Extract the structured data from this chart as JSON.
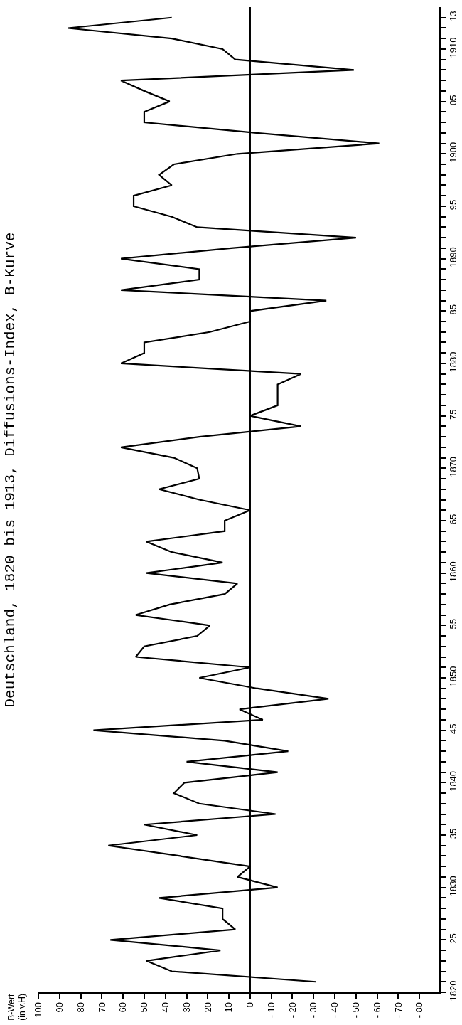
{
  "chart_data": {
    "type": "line",
    "title": "Deutschland, 1820 bis 1913, Diffusions-Index, B-Kurve",
    "ylabel": "B-Wert\n(in v.H)",
    "orientation": "horizontal",
    "x": [
      1821,
      1822,
      1823,
      1824,
      1825,
      1826,
      1827,
      1828,
      1829,
      1830,
      1831,
      1832,
      1833,
      1834,
      1835,
      1836,
      1837,
      1838,
      1839,
      1840,
      1841,
      1842,
      1843,
      1844,
      1845,
      1846,
      1847,
      1848,
      1849,
      1850,
      1851,
      1852,
      1853,
      1854,
      1855,
      1856,
      1857,
      1858,
      1859,
      1860,
      1861,
      1862,
      1863,
      1864,
      1865,
      1866,
      1867,
      1868,
      1869,
      1870,
      1871,
      1872,
      1873,
      1874,
      1875,
      1876,
      1877,
      1878,
      1879,
      1880,
      1881,
      1882,
      1883,
      1884,
      1885,
      1886,
      1887,
      1888,
      1889,
      1890,
      1891,
      1892,
      1893,
      1894,
      1895,
      1896,
      1897,
      1898,
      1899,
      1900,
      1901,
      1902,
      1903,
      1904,
      1905,
      1906,
      1907,
      1908,
      1909,
      1910,
      1911,
      1912,
      1913
    ],
    "series": [
      {
        "color": "#000000",
        "values": [
          -31,
          37,
          49,
          14,
          66,
          7,
          13,
          13,
          43,
          -13,
          6,
          0,
          33,
          67,
          25,
          50,
          -12,
          24,
          36,
          31,
          -13,
          30,
          -18,
          12,
          74,
          -6,
          5,
          -37,
          -3,
          24,
          0,
          54,
          50,
          25,
          19,
          54,
          38,
          12,
          6,
          49,
          13,
          37,
          49,
          12,
          12,
          0,
          24,
          43,
          24,
          25,
          36,
          61,
          24,
          -24,
          0,
          -13,
          -13,
          -13,
          -24,
          61,
          50,
          50,
          19,
          0,
          0,
          -36,
          61,
          24,
          24,
          61,
          9,
          -50,
          25,
          37,
          55,
          55,
          37,
          43,
          36,
          6,
          -61,
          -3,
          50,
          50,
          38,
          50,
          61,
          -49,
          7,
          13,
          37,
          86,
          37
        ]
      }
    ],
    "ylim": [
      1820,
      1914
    ],
    "yticks": [
      {
        "value": 1820,
        "label": "1820"
      },
      {
        "value": 1821,
        "label": null
      },
      {
        "value": 1822,
        "label": null
      },
      {
        "value": 1823,
        "label": null
      },
      {
        "value": 1824,
        "label": null
      },
      {
        "value": 1825,
        "label": "25"
      },
      {
        "value": 1826,
        "label": null
      },
      {
        "value": 1827,
        "label": null
      },
      {
        "value": 1828,
        "label": null
      },
      {
        "value": 1829,
        "label": null
      },
      {
        "value": 1830,
        "label": "1830"
      },
      {
        "value": 1831,
        "label": null
      },
      {
        "value": 1832,
        "label": null
      },
      {
        "value": 1833,
        "label": null
      },
      {
        "value": 1834,
        "label": null
      },
      {
        "value": 1835,
        "label": "35"
      },
      {
        "value": 1836,
        "label": null
      },
      {
        "value": 1837,
        "label": null
      },
      {
        "value": 1838,
        "label": null
      },
      {
        "value": 1839,
        "label": null
      },
      {
        "value": 1840,
        "label": "1840"
      },
      {
        "value": 1841,
        "label": null
      },
      {
        "value": 1842,
        "label": null
      },
      {
        "value": 1843,
        "label": null
      },
      {
        "value": 1844,
        "label": null
      },
      {
        "value": 1845,
        "label": "45"
      },
      {
        "value": 1846,
        "label": null
      },
      {
        "value": 1847,
        "label": null
      },
      {
        "value": 1848,
        "label": null
      },
      {
        "value": 1849,
        "label": null
      },
      {
        "value": 1850,
        "label": "1850"
      },
      {
        "value": 1851,
        "label": null
      },
      {
        "value": 1852,
        "label": null
      },
      {
        "value": 1853,
        "label": null
      },
      {
        "value": 1854,
        "label": null
      },
      {
        "value": 1855,
        "label": "55"
      },
      {
        "value": 1856,
        "label": null
      },
      {
        "value": 1857,
        "label": null
      },
      {
        "value": 1858,
        "label": null
      },
      {
        "value": 1859,
        "label": null
      },
      {
        "value": 1860,
        "label": "1860"
      },
      {
        "value": 1861,
        "label": null
      },
      {
        "value": 1862,
        "label": null
      },
      {
        "value": 1863,
        "label": null
      },
      {
        "value": 1864,
        "label": null
      },
      {
        "value": 1865,
        "label": "65"
      },
      {
        "value": 1866,
        "label": null
      },
      {
        "value": 1867,
        "label": null
      },
      {
        "value": 1868,
        "label": null
      },
      {
        "value": 1869,
        "label": null
      },
      {
        "value": 1870,
        "label": "1870"
      },
      {
        "value": 1871,
        "label": null
      },
      {
        "value": 1872,
        "label": null
      },
      {
        "value": 1873,
        "label": null
      },
      {
        "value": 1874,
        "label": null
      },
      {
        "value": 1875,
        "label": "75"
      },
      {
        "value": 1876,
        "label": null
      },
      {
        "value": 1877,
        "label": null
      },
      {
        "value": 1878,
        "label": null
      },
      {
        "value": 1879,
        "label": null
      },
      {
        "value": 1880,
        "label": "1880"
      },
      {
        "value": 1881,
        "label": null
      },
      {
        "value": 1882,
        "label": null
      },
      {
        "value": 1883,
        "label": null
      },
      {
        "value": 1884,
        "label": null
      },
      {
        "value": 1885,
        "label": "85"
      },
      {
        "value": 1886,
        "label": null
      },
      {
        "value": 1887,
        "label": null
      },
      {
        "value": 1888,
        "label": null
      },
      {
        "value": 1889,
        "label": null
      },
      {
        "value": 1890,
        "label": "1890"
      },
      {
        "value": 1891,
        "label": null
      },
      {
        "value": 1892,
        "label": null
      },
      {
        "value": 1893,
        "label": null
      },
      {
        "value": 1894,
        "label": null
      },
      {
        "value": 1895,
        "label": "95"
      },
      {
        "value": 1896,
        "label": null
      },
      {
        "value": 1897,
        "label": null
      },
      {
        "value": 1898,
        "label": null
      },
      {
        "value": 1899,
        "label": null
      },
      {
        "value": 1900,
        "label": "1900"
      },
      {
        "value": 1901,
        "label": null
      },
      {
        "value": 1902,
        "label": null
      },
      {
        "value": 1903,
        "label": null
      },
      {
        "value": 1904,
        "label": null
      },
      {
        "value": 1905,
        "label": "05"
      },
      {
        "value": 1906,
        "label": null
      },
      {
        "value": 1907,
        "label": null
      },
      {
        "value": 1908,
        "label": null
      },
      {
        "value": 1909,
        "label": null
      },
      {
        "value": 1910,
        "label": "1910"
      },
      {
        "value": 1911,
        "label": null
      },
      {
        "value": 1912,
        "label": null
      },
      {
        "value": 1913,
        "label": "13"
      }
    ],
    "xlim": [
      100,
      -89
    ],
    "xticks": [
      100,
      90,
      80,
      70,
      60,
      50,
      40,
      30,
      20,
      10,
      0,
      {
        "value": -10,
        "label": "- 10"
      },
      {
        "value": -20,
        "label": "- 20"
      },
      {
        "value": -30,
        "label": "- 30"
      },
      {
        "value": -40,
        "label": "- 40"
      },
      {
        "value": -50,
        "label": "- 50"
      },
      {
        "value": -60,
        "label": "- 60"
      },
      {
        "value": -70,
        "label": "- 70"
      },
      {
        "value": -80,
        "label": "- 80"
      }
    ],
    "ref_lines": [
      {
        "axis": "x",
        "value": 0,
        "color": "#000000"
      }
    ],
    "marker": "none",
    "line_style": "solid"
  }
}
